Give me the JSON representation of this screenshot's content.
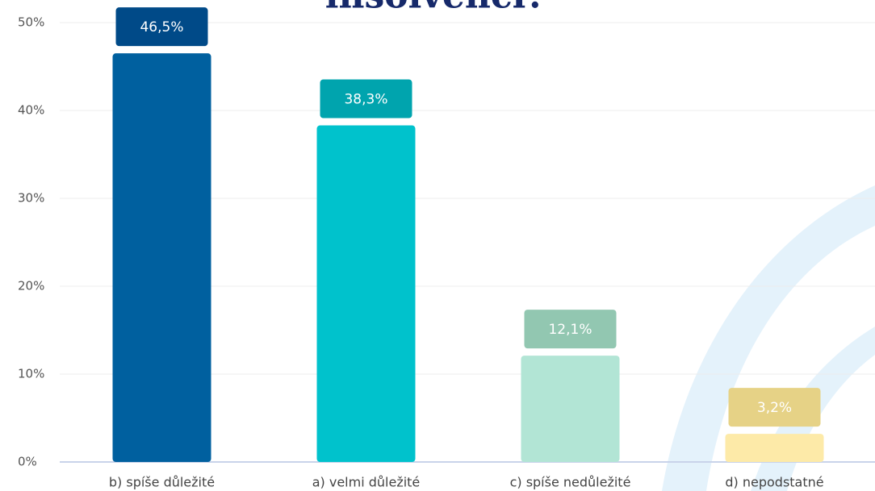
{
  "chart_data": {
    "type": "bar",
    "title": "insolvenci?",
    "categories": [
      "b) spíše důležité",
      "a) velmi důležité",
      "c) spíše nedůležité",
      "d) nepodstatné"
    ],
    "values": [
      46.5,
      38.3,
      12.1,
      3.2
    ],
    "value_labels": [
      "46,5%",
      "38,3%",
      "12,1%",
      "3,2%"
    ],
    "colors": [
      "#00609f",
      "#00c2cc",
      "#b2e5d5",
      "#fdeaa8"
    ],
    "label_colors": [
      "#004a88",
      "#00a4ae",
      "#92c7b1",
      "#e6d286"
    ],
    "ylim": [
      0,
      50
    ],
    "yticks": [
      {
        "value": 0,
        "label": "0%"
      },
      {
        "value": 10,
        "label": "10%"
      },
      {
        "value": 20,
        "label": "20%"
      },
      {
        "value": 30,
        "label": "30%"
      },
      {
        "value": 40,
        "label": "40%"
      },
      {
        "value": 50,
        "label": "50%"
      }
    ],
    "grid": true
  }
}
